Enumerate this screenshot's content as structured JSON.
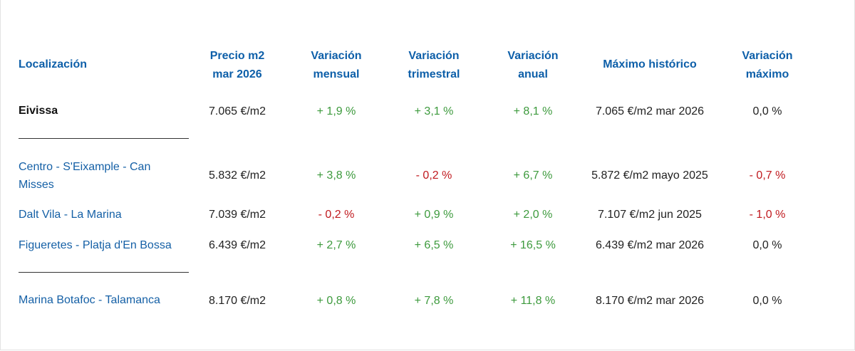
{
  "headers": {
    "location": "Localización",
    "price_line1": "Precio m2",
    "price_line2": "mar 2026",
    "monthly_line1": "Variación",
    "monthly_line2": "mensual",
    "quarterly_line1": "Variación",
    "quarterly_line2": "trimestral",
    "annual_line1": "Variación",
    "annual_line2": "anual",
    "max": "Máximo histórico",
    "maxvar_line1": "Variación",
    "maxvar_line2": "máximo"
  },
  "rows": [
    {
      "location": "Eivissa",
      "price": "7.065 €/m2",
      "monthly": "+ 1,9 %",
      "quarterly": "+ 3,1 %",
      "annual": "+ 8,1 %",
      "max": "7.065 €/m2 mar 2026",
      "max_var": "0,0 %"
    },
    {
      "location": "Centro - S'Eixample - Can Misses",
      "price": "5.832 €/m2",
      "monthly": "+ 3,8 %",
      "quarterly": "- 0,2 %",
      "annual": "+ 6,7 %",
      "max": "5.872 €/m2 mayo 2025",
      "max_var": "- 0,7 %"
    },
    {
      "location": "Dalt Vila - La Marina",
      "price": "7.039 €/m2",
      "monthly": "- 0,2 %",
      "quarterly": "+ 0,9 %",
      "annual": "+ 2,0 %",
      "max": "7.107 €/m2 jun 2025",
      "max_var": "- 1,0 %"
    },
    {
      "location": "Figueretes - Platja d'En Bossa",
      "price": "6.439 €/m2",
      "monthly": "+ 2,7 %",
      "quarterly": "+ 6,5 %",
      "annual": "+ 16,5 %",
      "max": "6.439 €/m2 mar 2026",
      "max_var": "0,0 %"
    },
    {
      "location": "Marina Botafoc - Talamanca",
      "price": "8.170 €/m2",
      "monthly": "+ 0,8 %",
      "quarterly": "+ 7,8 %",
      "annual": "+ 11,8 %",
      "max": "8.170 €/m2 mar 2026",
      "max_var": "0,0 %"
    }
  ],
  "colors": {
    "header": "#0d5fa9",
    "location_link": "#1560a6",
    "positive": "#3d9a3d",
    "negative": "#c0191e",
    "neutral": "#222222"
  }
}
